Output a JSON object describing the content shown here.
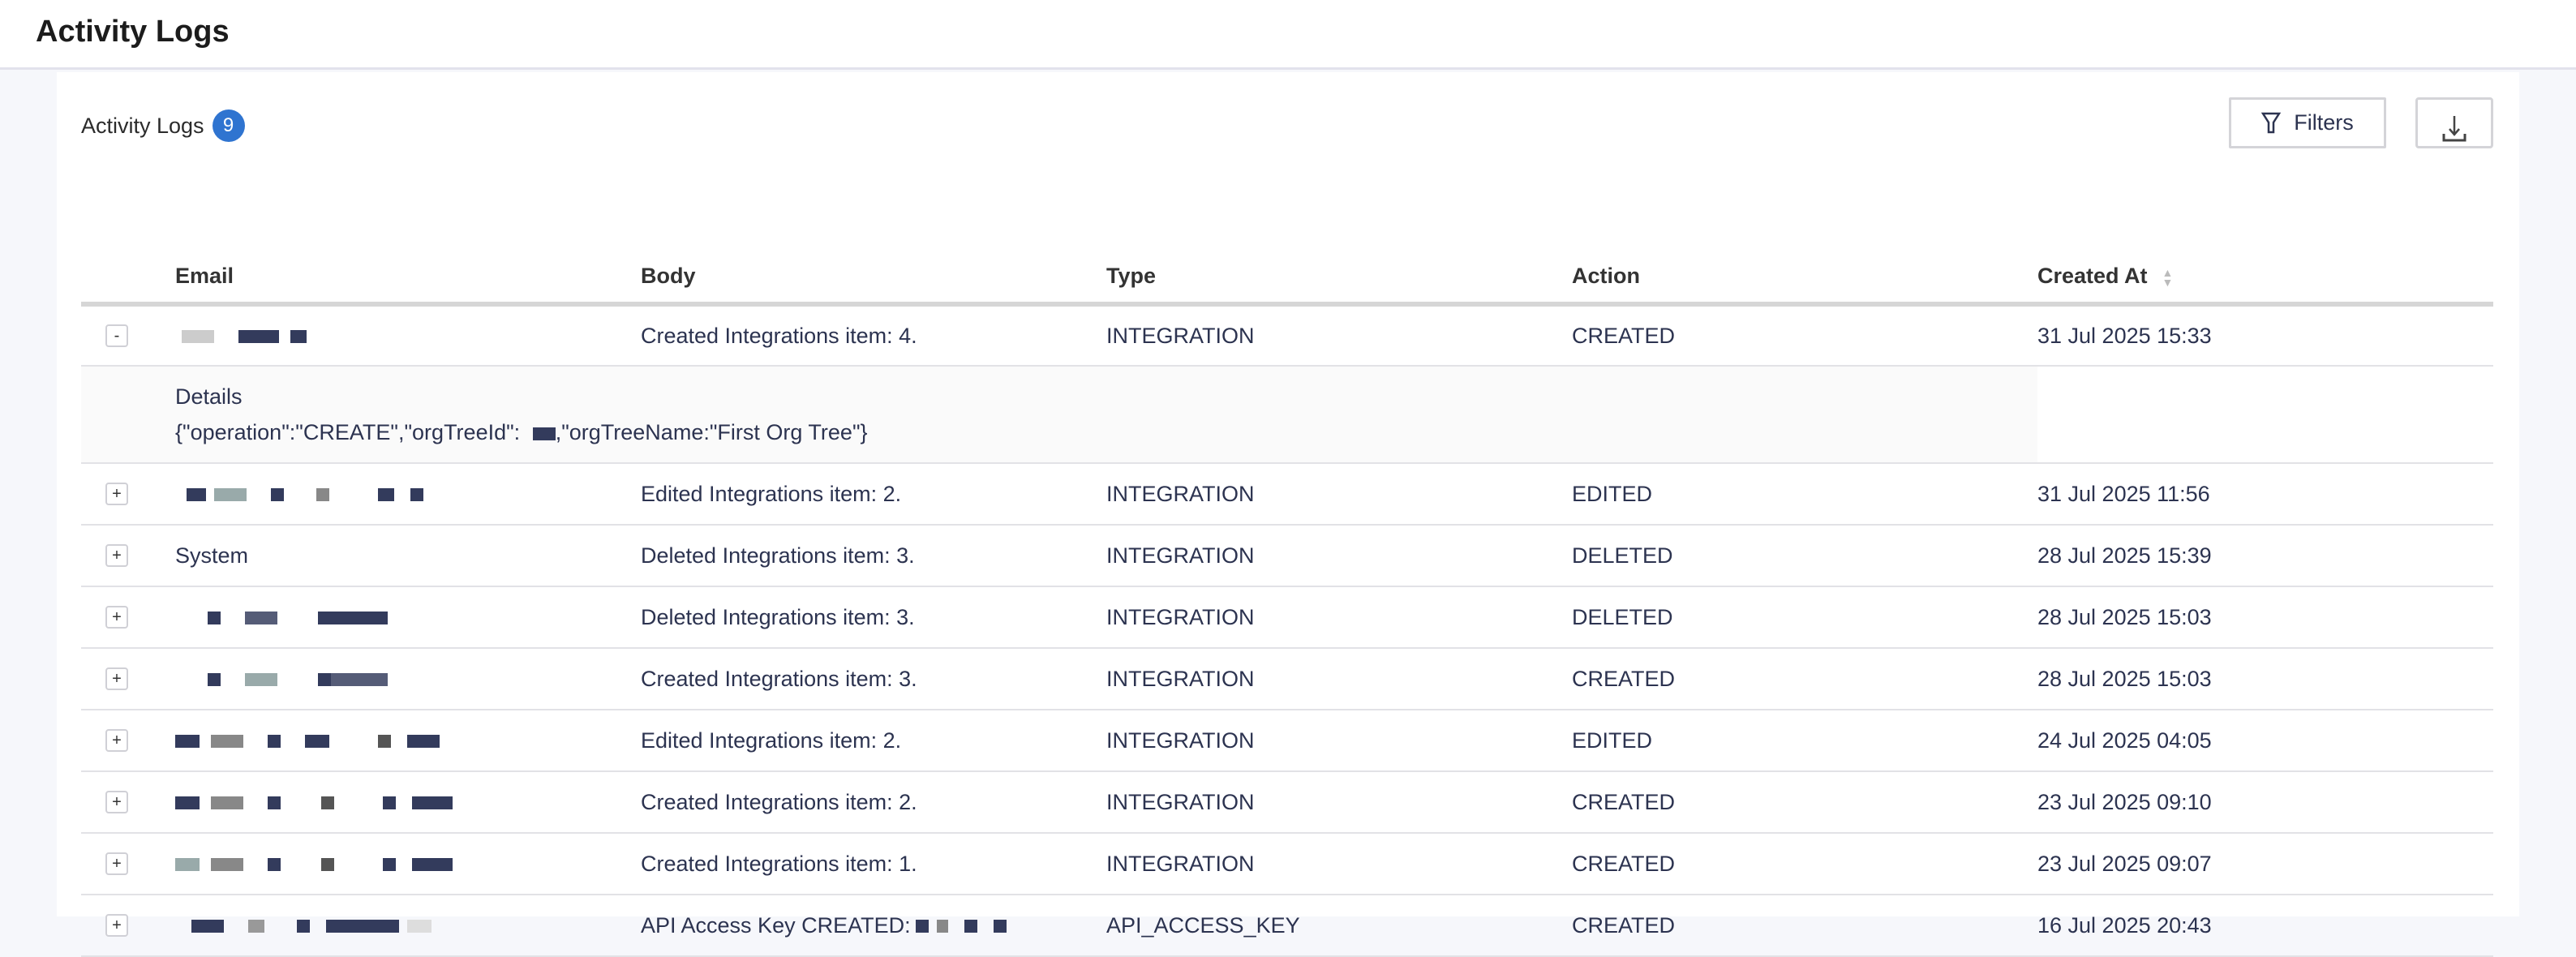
{
  "header": {
    "title": "Activity Logs"
  },
  "card": {
    "title": "Activity Logs",
    "count": "9",
    "filters_label": "Filters",
    "filters_icon": "filter-icon",
    "download_icon": "download-icon"
  },
  "table": {
    "columns": [
      "Email",
      "Body",
      "Type",
      "Action",
      "Created At"
    ],
    "rows": [
      {
        "toggle": "-",
        "email": "",
        "body": "Created Integrations item: 4.",
        "type": "INTEGRATION",
        "action": "CREATED",
        "created": "31 Jul 2025 15:33",
        "expanded": true,
        "details_label": "Details",
        "details_pre": "{\"operation\":\"CREATE\",\"orgTreeId\": ",
        "details_post": ",\"orgTreeName:\"First Org Tree\"}"
      },
      {
        "toggle": "+",
        "email": "",
        "body": "Edited Integrations item: 2.",
        "type": "INTEGRATION",
        "action": "EDITED",
        "created": "31 Jul 2025 11:56"
      },
      {
        "toggle": "+",
        "email": "System",
        "body": "Deleted Integrations item: 3.",
        "type": "INTEGRATION",
        "action": "DELETED",
        "created": "28 Jul 2025 15:39"
      },
      {
        "toggle": "+",
        "email": "",
        "body": "Deleted Integrations item: 3.",
        "type": "INTEGRATION",
        "action": "DELETED",
        "created": "28 Jul 2025 15:03"
      },
      {
        "toggle": "+",
        "email": "",
        "body": "Created Integrations item: 3.",
        "type": "INTEGRATION",
        "action": "CREATED",
        "created": "28 Jul 2025 15:03"
      },
      {
        "toggle": "+",
        "email": "",
        "body": "Edited Integrations item: 2.",
        "type": "INTEGRATION",
        "action": "EDITED",
        "created": "24 Jul 2025 04:05"
      },
      {
        "toggle": "+",
        "email": "",
        "body": "Created Integrations item: 2.",
        "type": "INTEGRATION",
        "action": "CREATED",
        "created": "23 Jul 2025 09:10"
      },
      {
        "toggle": "+",
        "email": "",
        "body": "Created Integrations item: 1.",
        "type": "INTEGRATION",
        "action": "CREATED",
        "created": "23 Jul 2025 09:07"
      },
      {
        "toggle": "+",
        "email": "",
        "body": "API Access Key CREATED:",
        "type": "API_ACCESS_KEY",
        "action": "CREATED",
        "created": "16 Jul 2025 20:43"
      }
    ]
  }
}
